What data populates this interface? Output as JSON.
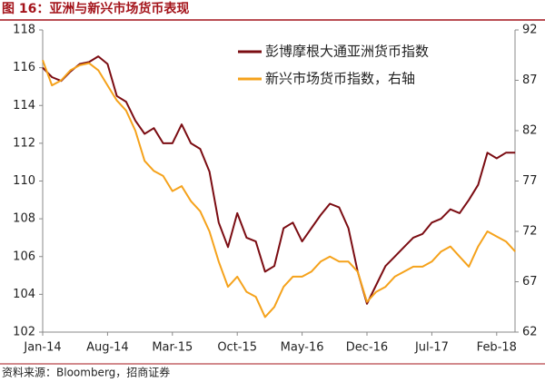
{
  "chart_data": {
    "type": "line",
    "title": "图 16：亚洲与新兴市场货币表现",
    "source": "资料来源：Bloomberg，招商证券",
    "categories": [
      "Jan-14",
      null,
      null,
      null,
      null,
      null,
      null,
      "Aug-14",
      null,
      null,
      null,
      null,
      null,
      null,
      "Mar-15",
      null,
      null,
      null,
      null,
      null,
      null,
      "Oct-15",
      null,
      null,
      null,
      null,
      null,
      null,
      "May-16",
      null,
      null,
      null,
      null,
      null,
      null,
      "Dec-16",
      null,
      null,
      null,
      null,
      null,
      null,
      "Jul-17",
      null,
      null,
      null,
      null,
      null,
      null,
      "Feb-18",
      null,
      null
    ],
    "series": [
      {
        "name": "彭博摩根大通亚洲货币指数",
        "color": "#7b0c12",
        "values": [
          116,
          115.5,
          115.3,
          115.8,
          116.2,
          116.3,
          116.6,
          116.2,
          114.5,
          114.2,
          113.2,
          112.5,
          112.8,
          112.0,
          112.0,
          113.0,
          112.0,
          111.7,
          110.5,
          107.8,
          106.5,
          108.3,
          107.0,
          106.8,
          105.2,
          105.5,
          107.5,
          107.8,
          106.8,
          107.5,
          108.2,
          108.8,
          108.6,
          107.5,
          105.2,
          103.5,
          104.5,
          105.5,
          106.0,
          106.5,
          107.0,
          107.2,
          107.8,
          108.0,
          108.5,
          108.3,
          109.0,
          109.8,
          111.5,
          111.2,
          111.5,
          111.5
        ]
      },
      {
        "name": "新兴市场货币指数，右轴",
        "color": "#f5a21b",
        "axis": "y2",
        "values": [
          89,
          86.5,
          87,
          88,
          88.5,
          88.7,
          88,
          86.5,
          85,
          84,
          82,
          79,
          78,
          77.5,
          76,
          76.5,
          75,
          74,
          72,
          69,
          66.5,
          67.5,
          66,
          65.5,
          63.5,
          64.5,
          66.5,
          67.5,
          67.5,
          68,
          69,
          69.5,
          69,
          69,
          68,
          65,
          66,
          66.5,
          67.5,
          68,
          68.5,
          68.5,
          69,
          70,
          70.5,
          69.5,
          68.5,
          70.5,
          72,
          71.5,
          71,
          70
        ]
      }
    ],
    "ylim": [
      102,
      118
    ],
    "yticks": [
      102,
      104,
      106,
      108,
      110,
      112,
      114,
      116,
      118
    ],
    "y2lim": [
      62,
      92
    ],
    "y2ticks": [
      62,
      67,
      72,
      77,
      82,
      87,
      92
    ]
  }
}
